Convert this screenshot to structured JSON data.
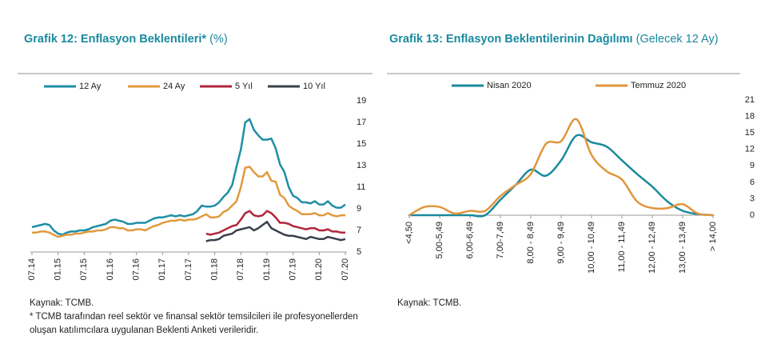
{
  "chart_data": [
    {
      "type": "line",
      "title": "Grafik 12: Enflasyon Beklentileri*",
      "subtitle": "(%)",
      "categories": [
        "07.14",
        null,
        null,
        null,
        null,
        null,
        "01.15",
        null,
        null,
        null,
        null,
        null,
        "07.15",
        null,
        null,
        null,
        null,
        null,
        "01.16",
        null,
        null,
        null,
        null,
        null,
        "07.16",
        null,
        null,
        null,
        null,
        null,
        "01.17",
        null,
        null,
        null,
        null,
        null,
        "07.17",
        null,
        null,
        null,
        null,
        null,
        "01.18",
        null,
        null,
        null,
        null,
        null,
        "07.18",
        null,
        null,
        null,
        null,
        null,
        "01.19",
        null,
        null,
        null,
        null,
        null,
        "07.19",
        null,
        null,
        null,
        null,
        null,
        "01.20",
        null,
        null,
        null,
        null,
        null,
        "07.20"
      ],
      "series": [
        {
          "name": "12 Ay",
          "color": "#1f8ea5",
          "values": [
            7.3,
            7.4,
            7.5,
            7.6,
            7.5,
            7.0,
            6.7,
            6.6,
            6.8,
            6.9,
            6.9,
            7.0,
            7.0,
            7.1,
            7.3,
            7.4,
            7.5,
            7.6,
            7.9,
            8.0,
            7.9,
            7.8,
            7.6,
            7.6,
            7.7,
            7.7,
            7.7,
            7.9,
            8.1,
            8.2,
            8.2,
            8.3,
            8.4,
            8.3,
            8.4,
            8.3,
            8.4,
            8.5,
            8.8,
            9.3,
            9.2,
            9.2,
            9.3,
            9.6,
            10.1,
            10.5,
            11.2,
            12.9,
            14.5,
            17.0,
            17.3,
            16.3,
            15.8,
            15.4,
            15.4,
            15.5,
            14.6,
            13.1,
            12.4,
            11.0,
            10.2,
            10.0,
            9.6,
            9.6,
            9.5,
            9.7,
            9.4,
            9.4,
            9.7,
            9.3,
            9.1,
            9.1,
            9.4
          ]
        },
        {
          "name": "24 Ay",
          "color": "#e09a3e",
          "values": [
            6.8,
            6.8,
            6.9,
            6.9,
            6.8,
            6.6,
            6.4,
            6.5,
            6.6,
            6.6,
            6.7,
            6.7,
            6.8,
            6.9,
            6.9,
            7.0,
            7.0,
            7.1,
            7.3,
            7.3,
            7.2,
            7.2,
            7.0,
            7.0,
            7.1,
            7.1,
            7.0,
            7.2,
            7.4,
            7.5,
            7.7,
            7.8,
            7.9,
            7.9,
            8.0,
            7.9,
            8.0,
            8.0,
            8.1,
            8.3,
            8.5,
            8.2,
            8.2,
            8.3,
            8.7,
            8.9,
            9.3,
            9.7,
            11.0,
            12.8,
            12.9,
            12.4,
            12.0,
            12.0,
            12.4,
            11.6,
            11.5,
            10.3,
            10.0,
            9.3,
            9.0,
            8.8,
            8.5,
            8.5,
            8.5,
            8.6,
            8.4,
            8.4,
            8.6,
            8.4,
            8.3,
            8.4,
            8.4
          ]
        },
        {
          "name": "5 Yıl",
          "color": "#b1263b",
          "values": [
            null,
            null,
            null,
            null,
            null,
            null,
            null,
            null,
            null,
            null,
            null,
            null,
            null,
            null,
            null,
            null,
            null,
            null,
            null,
            null,
            null,
            null,
            null,
            null,
            null,
            null,
            null,
            null,
            null,
            null,
            null,
            null,
            null,
            null,
            null,
            null,
            null,
            null,
            null,
            null,
            6.7,
            6.6,
            6.7,
            6.8,
            7.0,
            7.2,
            7.4,
            7.5,
            8.0,
            8.6,
            8.8,
            8.4,
            8.3,
            8.4,
            8.8,
            8.6,
            8.2,
            7.7,
            7.7,
            7.6,
            7.4,
            7.3,
            7.2,
            7.1,
            7.2,
            7.2,
            7.0,
            7.0,
            7.1,
            6.9,
            6.9,
            6.8,
            6.8
          ]
        },
        {
          "name": "10 Yıl",
          "color": "#3b404c",
          "values": [
            null,
            null,
            null,
            null,
            null,
            null,
            null,
            null,
            null,
            null,
            null,
            null,
            null,
            null,
            null,
            null,
            null,
            null,
            null,
            null,
            null,
            null,
            null,
            null,
            null,
            null,
            null,
            null,
            null,
            null,
            null,
            null,
            null,
            null,
            null,
            null,
            null,
            null,
            null,
            null,
            6.0,
            6.1,
            6.1,
            6.2,
            6.5,
            6.6,
            6.7,
            7.0,
            7.1,
            7.2,
            7.3,
            7.0,
            7.2,
            7.5,
            7.8,
            7.2,
            7.0,
            6.8,
            6.6,
            6.5,
            6.5,
            6.4,
            6.3,
            6.2,
            6.4,
            6.3,
            6.2,
            6.2,
            6.4,
            6.3,
            6.2,
            6.1,
            6.2
          ]
        }
      ],
      "ylim": [
        5,
        19
      ],
      "yticks": [
        5,
        7,
        9,
        11,
        13,
        15,
        17,
        19
      ],
      "smooth": false,
      "notes": [
        "Kaynak: TCMB.",
        "* TCMB tarafından reel sektör ve finansal sektör temsilcileri ile profesyonellerden oluşan katılımcılara uygulanan Beklenti Anketi verileridir."
      ]
    },
    {
      "type": "line",
      "title": "Grafik 13: Enflasyon Beklentilerinin Dağılımı",
      "subtitle": "(Gelecek 12 Ay)",
      "categories": [
        "<4,50",
        null,
        "5,00-5,49",
        null,
        "6,00-6,49",
        null,
        "7,00-7,49",
        null,
        "8,00 - 8,49",
        null,
        "9,00 - 9,49",
        null,
        "10,00 - 10,49",
        null,
        "11,00 - 11,49",
        null,
        "12,00 - 12,49",
        null,
        "13,00 - 13,49",
        null,
        "> 14,00"
      ],
      "series": [
        {
          "name": "Nisan 2020",
          "color": "#1a8a9d",
          "values": [
            0,
            0,
            0,
            0,
            0,
            0,
            2.8,
            5.5,
            8.3,
            7.2,
            10,
            14.5,
            13.3,
            12.5,
            10,
            7.5,
            5.2,
            2.5,
            0.8,
            0.2,
            0
          ]
        },
        {
          "name": "Temmuz 2020",
          "color": "#e0963c",
          "values": [
            0,
            1.5,
            1.5,
            0.3,
            0.8,
            0.8,
            3.5,
            5.5,
            7.5,
            13,
            13.5,
            17.5,
            11,
            8,
            6.5,
            2.5,
            1.3,
            1.3,
            2,
            0.3,
            0
          ]
        }
      ],
      "ylim": [
        0,
        21
      ],
      "yticks": [
        0,
        3,
        6,
        9,
        12,
        15,
        18,
        21
      ],
      "smooth": true,
      "notes": [
        "Kaynak: TCMB."
      ]
    }
  ]
}
